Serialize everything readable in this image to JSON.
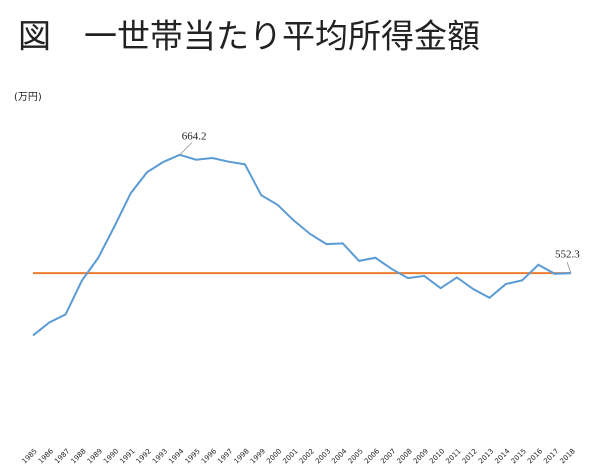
{
  "chart_data": {
    "type": "line",
    "title": "図　一世帯当たり平均所得金額",
    "unit_label": "(万円)",
    "categories": [
      "1985",
      "1986",
      "1987",
      "1988",
      "1989",
      "1990",
      "1991",
      "1992",
      "1993",
      "1994",
      "1995",
      "1996",
      "1997",
      "1998",
      "1999",
      "2000",
      "2001",
      "2002",
      "2003",
      "2004",
      "2005",
      "2006",
      "2007",
      "2008",
      "2009",
      "2010",
      "2011",
      "2012",
      "2013",
      "2014",
      "2015",
      "2016",
      "2017",
      "2018"
    ],
    "series": [
      {
        "color": "#5b9bd5",
        "values": [
          493.3,
          505.6,
          513.2,
          545.2,
          566.7,
          596.6,
          628.0,
          647.8,
          657.5,
          664.2,
          659.6,
          661.2,
          657.7,
          655.2,
          626.0,
          616.9,
          602.0,
          589.3,
          579.7,
          580.4,
          563.8,
          566.8,
          556.2,
          547.5,
          549.6,
          538.0,
          548.2,
          537.2,
          528.9,
          541.9,
          545.4,
          560.2,
          551.6,
          552.3
        ]
      }
    ],
    "reference_line": {
      "value": 552.3,
      "color": "#ed7d31"
    },
    "ylim": [
      400,
      700
    ]
  }
}
